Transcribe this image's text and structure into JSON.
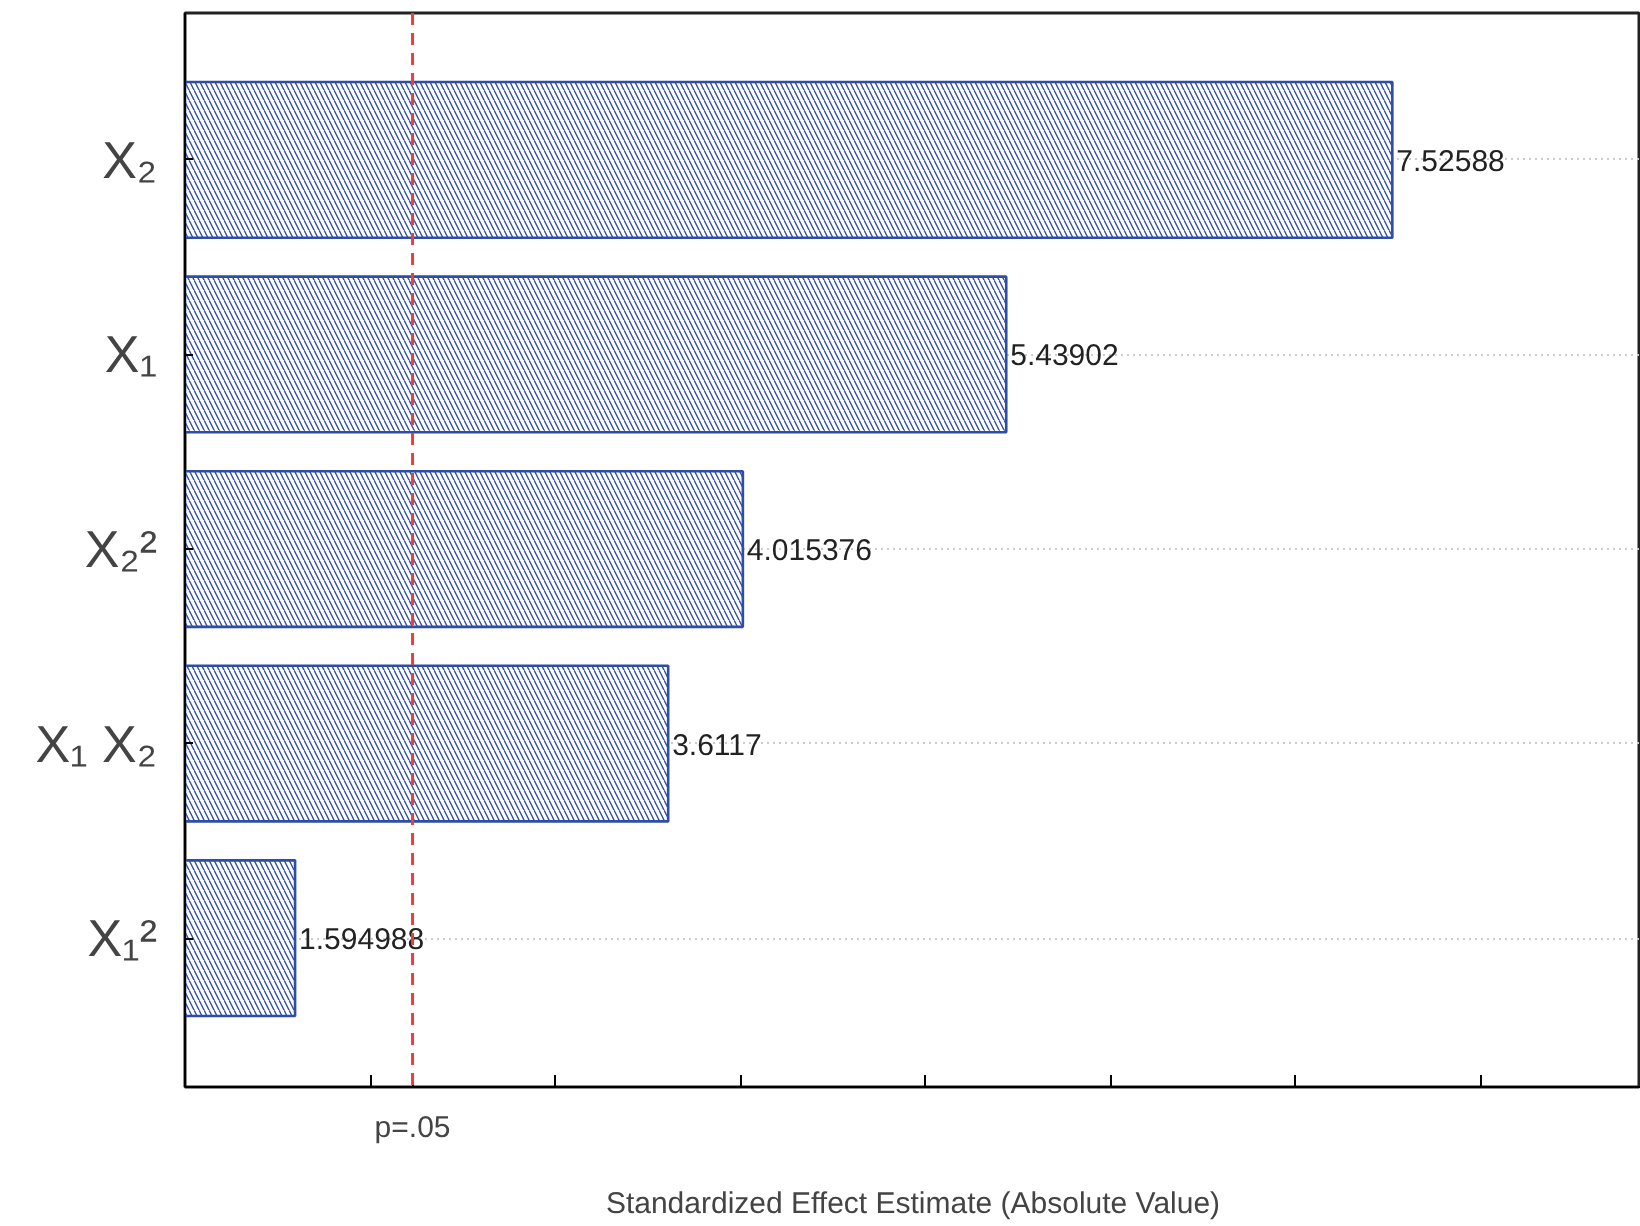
{
  "chart_data": {
    "type": "bar",
    "orientation": "horizontal",
    "xlabel": "Standardized Effect Estimate (Absolute Value)",
    "categories": [
      "X₂",
      "X₁",
      "X₂²",
      "X₁ X₂",
      "X₁²"
    ],
    "values": [
      7.52588,
      5.43902,
      4.015376,
      3.6117,
      1.594988
    ],
    "color": "#2e4da6",
    "data_labels": true,
    "xlim": [
      1,
      8.87
    ],
    "xticks": [
      {
        "value": 2,
        "label": null
      },
      {
        "value": 3,
        "label": null
      },
      {
        "value": 4,
        "label": null
      },
      {
        "value": 5,
        "label": null
      },
      {
        "value": 6,
        "label": null
      },
      {
        "value": 7,
        "label": null
      },
      {
        "value": 8,
        "label": null
      }
    ],
    "ref_lines": [
      {
        "axis": "x",
        "value": 2.23,
        "label": "p=.05",
        "color": "#e8413c",
        "line_style": "dashed"
      }
    ],
    "grid": "y"
  }
}
